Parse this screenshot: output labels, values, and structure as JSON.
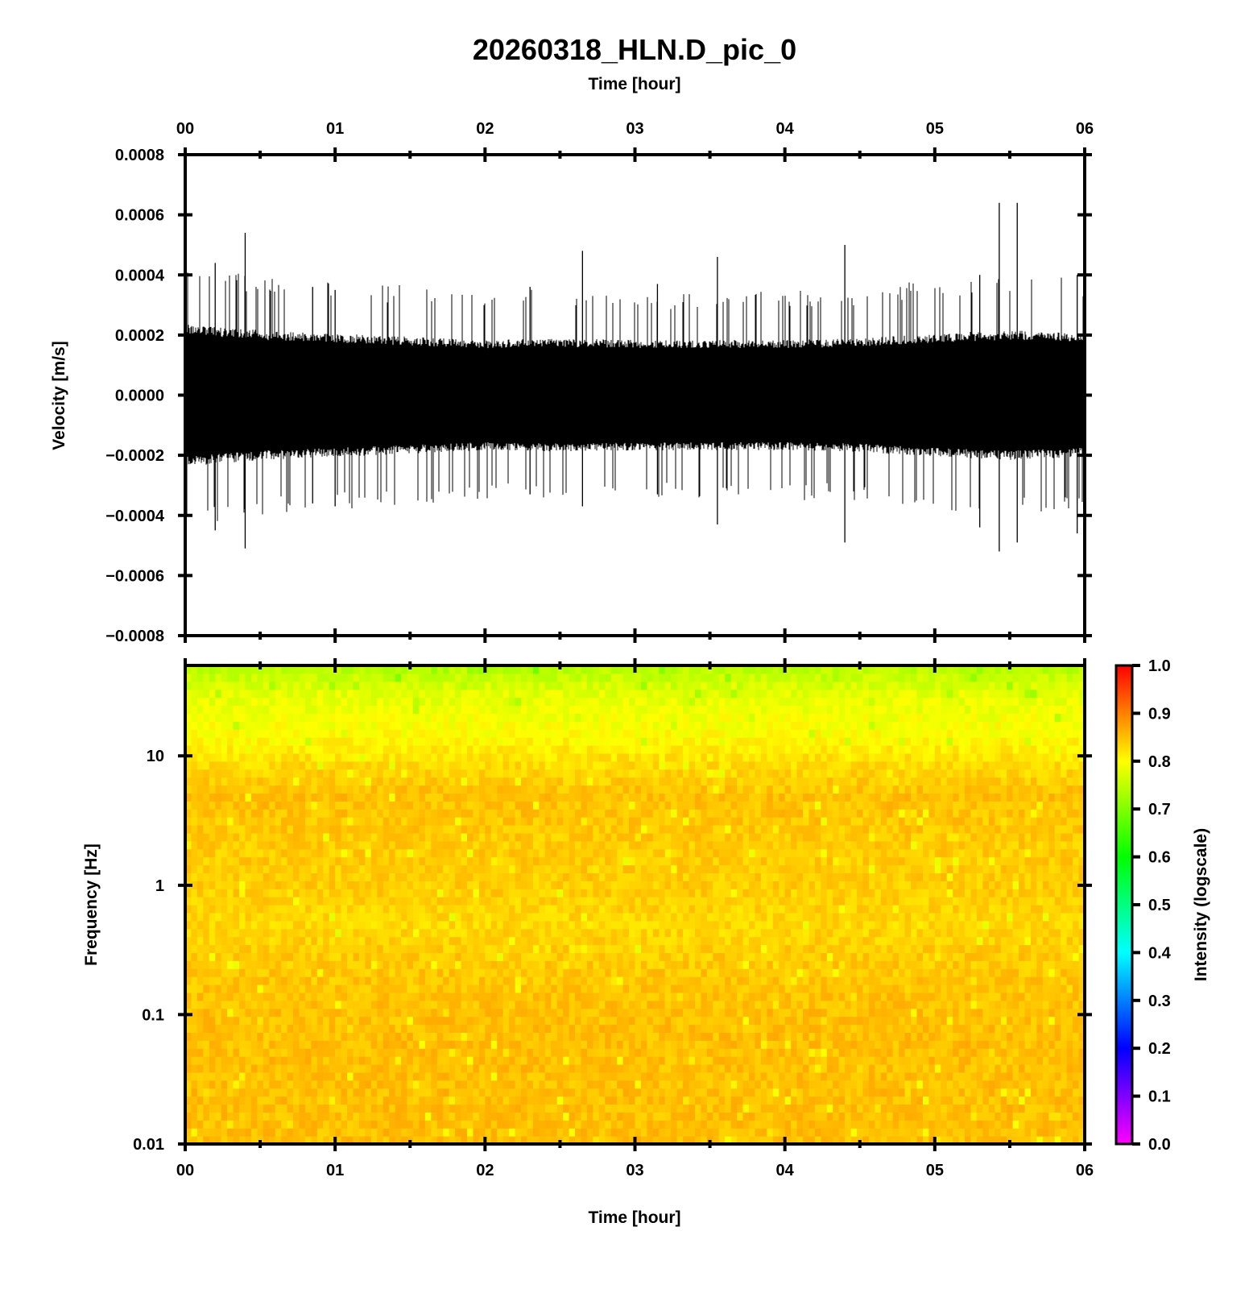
{
  "figure": {
    "title": "20260318_HLN.D_pic_0",
    "top_xlabel": "Time [hour]",
    "bottom_xlabel": "Time [hour]"
  },
  "chart_data": [
    {
      "type": "line",
      "panel": "waveform",
      "description_source": "seismic velocity trace, dense noise band",
      "xlabel": "Time [hour]",
      "ylabel": "Velocity [m/s]",
      "x_ticks": [
        "00",
        "01",
        "02",
        "03",
        "04",
        "05",
        "06"
      ],
      "xlim": [
        0,
        6
      ],
      "y_ticks": [
        "0.0008",
        "0.0006",
        "0.0004",
        "0.0002",
        "0.0000",
        "−0.0002",
        "−0.0004",
        "−0.0006",
        "−0.0008"
      ],
      "ylim": [
        -0.0008,
        0.0008
      ],
      "envelope": {
        "x": [
          0,
          0.5,
          1,
          1.5,
          2,
          2.5,
          3,
          3.5,
          4,
          4.5,
          5,
          5.5,
          6
        ],
        "upper": [
          0.00022,
          0.0002,
          0.00019,
          0.00018,
          0.00017,
          0.000175,
          0.00017,
          0.00017,
          0.00017,
          0.000175,
          0.00019,
          0.0002,
          0.00019
        ],
        "lower": [
          -0.00022,
          -0.0002,
          -0.00019,
          -0.00018,
          -0.00017,
          -0.000175,
          -0.00017,
          -0.00017,
          -0.00017,
          -0.000175,
          -0.00019,
          -0.0002,
          -0.00019
        ]
      },
      "peaks": {
        "x": [
          0.4,
          0.2,
          0.85,
          1.0,
          2.3,
          2.65,
          3.15,
          3.55,
          4.4,
          5.3,
          5.43,
          5.55,
          5.95
        ],
        "max": [
          0.00054,
          0.00044,
          0.00036,
          0.00035,
          0.00036,
          0.00048,
          0.00037,
          0.00046,
          0.0005,
          0.0004,
          0.00064,
          0.00064,
          0.0004
        ],
        "min": [
          -0.00051,
          -0.00045,
          -0.00036,
          -0.00037,
          -0.00033,
          -0.00037,
          -0.00033,
          -0.00043,
          -0.00049,
          -0.00044,
          -0.00052,
          -0.00049,
          -0.00046
        ]
      },
      "color": "#000000"
    },
    {
      "type": "heatmap",
      "panel": "spectrogram",
      "xlabel": "Time [hour]",
      "ylabel": "Frequency [Hz]",
      "x_ticks": [
        "00",
        "01",
        "02",
        "03",
        "04",
        "05",
        "06"
      ],
      "xlim": [
        0,
        6
      ],
      "y_ticks": [
        "10",
        "1",
        "0.1",
        "0.01"
      ],
      "yscale": "log",
      "ylim": [
        0.01,
        50
      ],
      "intensity_profile": {
        "freq": [
          50,
          30,
          15,
          8,
          5,
          2,
          1,
          0.5,
          0.3,
          0.1,
          0.01
        ],
        "intensity": [
          0.74,
          0.78,
          0.8,
          0.83,
          0.85,
          0.84,
          0.84,
          0.83,
          0.84,
          0.85,
          0.85
        ]
      },
      "colorbar": {
        "label": "Intensity (logscale)",
        "ticks": [
          "1.0",
          "0.9",
          "0.8",
          "0.7",
          "0.6",
          "0.5",
          "0.4",
          "0.3",
          "0.2",
          "0.1",
          "0.0"
        ],
        "range": [
          0,
          1
        ],
        "colors": [
          "#ff00ff",
          "#8000ff",
          "#0000ff",
          "#0080ff",
          "#00ffff",
          "#00ff80",
          "#00ff00",
          "#80ff00",
          "#ffff00",
          "#ff8000",
          "#ff0000"
        ]
      }
    }
  ]
}
